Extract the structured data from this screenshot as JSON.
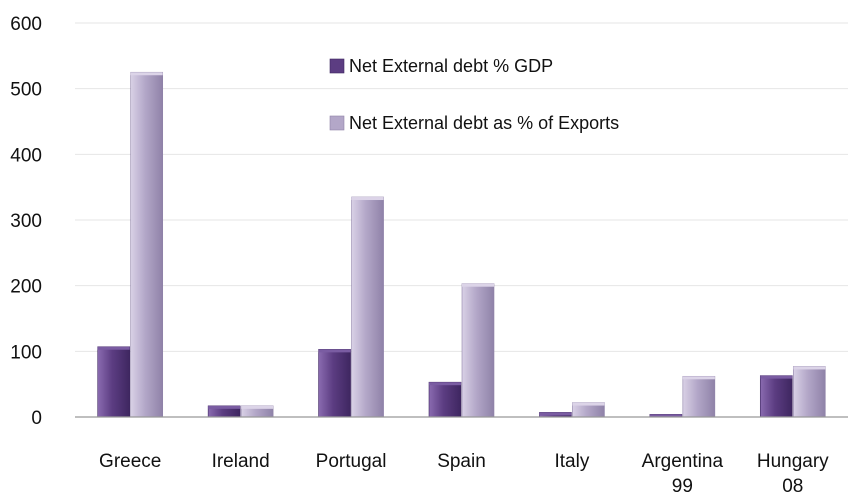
{
  "chart_data": {
    "type": "bar",
    "title": "",
    "xlabel": "",
    "ylabel": "",
    "ylim": [
      0,
      600
    ],
    "yticks": [
      0,
      100,
      200,
      300,
      400,
      500,
      600
    ],
    "grid": true,
    "legend_position": "top-center",
    "categories": [
      "Greece",
      "Ireland",
      "Portugal",
      "Spain",
      "Italy",
      "Argentina 99",
      "Hungary 08"
    ],
    "series": [
      {
        "name": "Net External debt % GDP",
        "color": "#5c3d82",
        "values": [
          107,
          17,
          103,
          53,
          7,
          4,
          63
        ]
      },
      {
        "name": "Net External debt as % of Exports",
        "color": "#b3a7c8",
        "values": [
          525,
          17,
          335,
          203,
          22,
          62,
          77
        ]
      }
    ]
  }
}
